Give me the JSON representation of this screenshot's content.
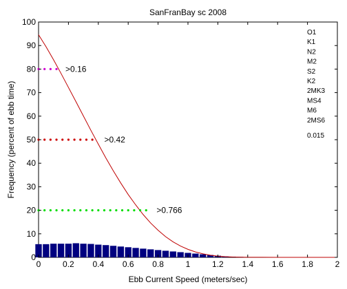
{
  "chart_data": {
    "type": "bar",
    "title": "SanFranBay sc 2008",
    "xlabel": "Ebb Current Speed (meters/sec)",
    "ylabel": "Frequency (percent of ebb time)",
    "xlim": [
      0,
      2
    ],
    "ylim": [
      0,
      100
    ],
    "x_ticks": [
      "0",
      "0.2",
      "0.4",
      "0.6",
      "0.8",
      "1",
      "1.2",
      "1.4",
      "1.6",
      "1.8",
      "2"
    ],
    "y_ticks": [
      "0",
      "10",
      "20",
      "30",
      "40",
      "50",
      "60",
      "70",
      "80",
      "90",
      "100"
    ],
    "grid": false,
    "bar_color": "#00007f",
    "bars": {
      "x": [
        0.0,
        0.05,
        0.1,
        0.15,
        0.2,
        0.25,
        0.3,
        0.35,
        0.4,
        0.45,
        0.5,
        0.55,
        0.6,
        0.65,
        0.7,
        0.75,
        0.8,
        0.85,
        0.9,
        0.95,
        1.0,
        1.05,
        1.1,
        1.15,
        1.2,
        1.25,
        1.3,
        1.35,
        1.4,
        1.45,
        1.5,
        1.55,
        1.6,
        1.65,
        1.7,
        1.75,
        1.8,
        1.85,
        1.9,
        1.95,
        2.0
      ],
      "values": [
        5.6,
        5.6,
        5.8,
        5.8,
        5.8,
        6.0,
        5.8,
        5.7,
        5.4,
        5.2,
        4.9,
        4.6,
        4.3,
        4.0,
        3.7,
        3.4,
        3.1,
        2.8,
        2.5,
        2.2,
        1.9,
        1.6,
        1.3,
        1.0,
        0.7,
        0.4,
        0.3,
        0.2,
        0.1,
        0.05,
        0,
        0,
        0,
        0,
        0,
        0,
        0,
        0,
        0,
        0,
        0
      ]
    },
    "curve": {
      "color": "#bf0000",
      "x": [
        0.0,
        0.05,
        0.1,
        0.15,
        0.2,
        0.25,
        0.3,
        0.35,
        0.4,
        0.45,
        0.5,
        0.55,
        0.6,
        0.65,
        0.7,
        0.75,
        0.8,
        0.85,
        0.9,
        0.95,
        1.0,
        1.05,
        1.1,
        1.15,
        1.2,
        1.25,
        1.3,
        1.35,
        1.4,
        1.5,
        1.6,
        1.7,
        1.8,
        1.9,
        2.0
      ],
      "y": [
        94.6,
        89.5,
        84.0,
        78.2,
        72.2,
        66.2,
        60.1,
        54.0,
        48.1,
        42.3,
        36.8,
        31.6,
        26.7,
        22.3,
        18.2,
        14.6,
        11.5,
        8.8,
        6.6,
        4.8,
        3.4,
        2.3,
        1.5,
        0.9,
        0.5,
        0.3,
        0.15,
        0.08,
        0.05,
        0.02,
        0,
        0,
        0,
        0,
        0
      ]
    },
    "dotted_lines": [
      {
        "y": 80,
        "x_start": 0.0,
        "x_end": 0.12,
        "step": 0.04,
        "color": "#d000d0",
        "label": ">0.16",
        "label_x": 0.18
      },
      {
        "y": 50,
        "x_start": 0.0,
        "x_end": 0.36,
        "step": 0.04,
        "color": "#cc0000",
        "label": ">0.42",
        "label_x": 0.44
      },
      {
        "y": 20,
        "x_start": 0.0,
        "x_end": 0.72,
        "step": 0.04,
        "color": "#00dd00",
        "label": ">0.766",
        "label_x": 0.79
      }
    ],
    "legend": {
      "placement": "top-right",
      "entries": [
        "O1",
        "K1",
        "N2",
        "M2",
        "S2",
        "K2",
        "2MK3",
        "MS4",
        "M6",
        "2MS6"
      ],
      "footer": "0.015"
    }
  }
}
